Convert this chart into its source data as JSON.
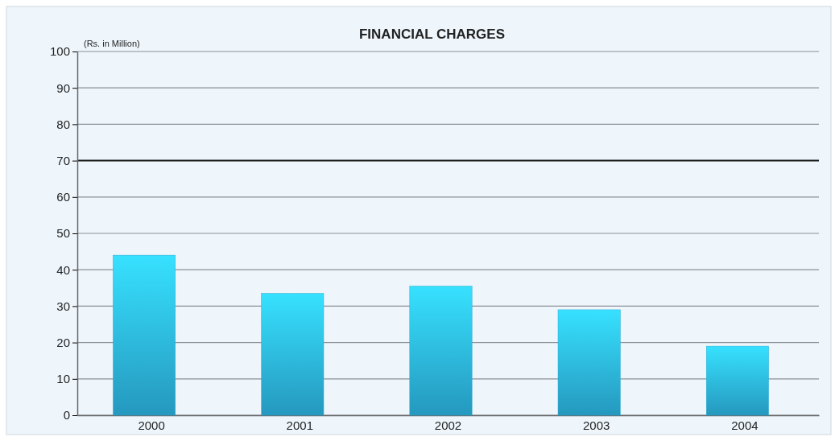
{
  "chart_data": {
    "type": "bar",
    "title": "FINANCIAL CHARGES",
    "ylabel": "(Rs. in Million)",
    "categories": [
      "2000",
      "2001",
      "2002",
      "2003",
      "2004"
    ],
    "values": [
      44,
      33.5,
      35.5,
      29,
      19
    ],
    "color": "#29a9d4",
    "ylim": [
      0,
      100
    ],
    "yticks": [
      0,
      10,
      20,
      30,
      40,
      50,
      60,
      70,
      80,
      90,
      100
    ],
    "grid": "y",
    "ref_lines": [
      {
        "axis": "y",
        "value": 70,
        "color": "#1a1a1a"
      }
    ]
  }
}
